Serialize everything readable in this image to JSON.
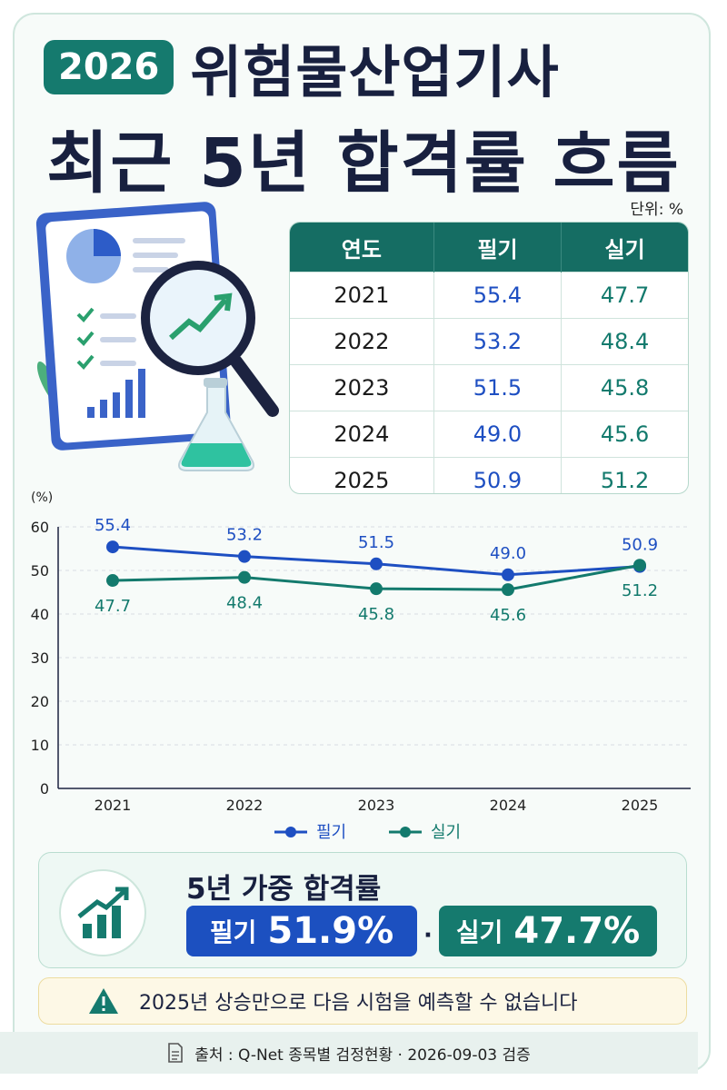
{
  "header": {
    "year_badge": "2026",
    "title_line1": "위험물산업기사",
    "title_line2": "최근 5년 합격률 흐름",
    "unit": "단위: %"
  },
  "table": {
    "headers": [
      "연도",
      "필기",
      "실기"
    ],
    "rows": [
      [
        "2021",
        "55.4",
        "47.7"
      ],
      [
        "2022",
        "53.2",
        "48.4"
      ],
      [
        "2023",
        "51.5",
        "45.8"
      ],
      [
        "2024",
        "49.0",
        "45.6"
      ],
      [
        "2025",
        "50.9",
        "51.2"
      ]
    ]
  },
  "chart_data": {
    "type": "line",
    "categories": [
      "2021",
      "2022",
      "2023",
      "2024",
      "2025"
    ],
    "series": [
      {
        "name": "필기",
        "values": [
          55.4,
          53.2,
          51.5,
          49.0,
          50.9
        ],
        "color": "#1e4fc2"
      },
      {
        "name": "실기",
        "values": [
          47.7,
          48.4,
          45.8,
          45.6,
          51.2
        ],
        "color": "#137a6d"
      }
    ],
    "ylabel": "(%)",
    "ylim": [
      0,
      60
    ],
    "yticks": [
      0,
      10,
      20,
      30,
      40,
      50,
      60
    ],
    "grid": true,
    "legend": "bottom-center"
  },
  "summary": {
    "title": "5년 가중 합격률",
    "written_label": "필기",
    "written_value": "51.9%",
    "separator": "·",
    "practical_label": "실기",
    "practical_value": "47.7%"
  },
  "warning": {
    "icon": "warning-triangle-icon",
    "text": "2025년 상승만으로 다음 시험을 예측할 수 없습니다"
  },
  "source": {
    "icon": "document-icon",
    "text": "출처 : Q-Net 종목별 검정현황 · 2026-09-03 검증"
  },
  "colors": {
    "primary_green": "#157a6e",
    "primary_blue": "#1c50c0",
    "title_navy": "#18203f"
  }
}
